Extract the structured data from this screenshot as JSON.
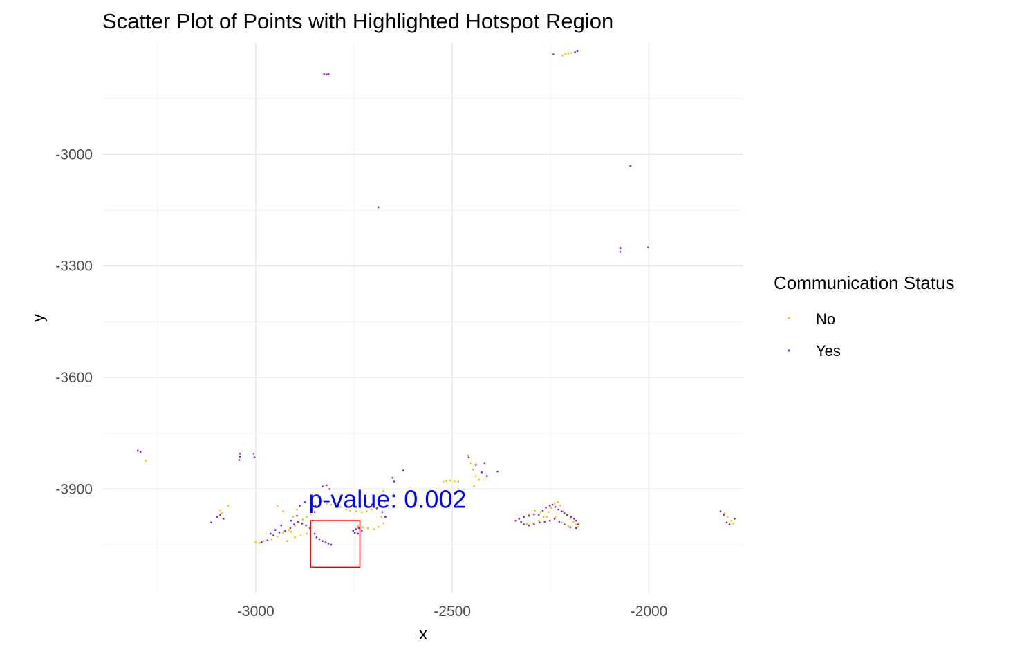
{
  "chart_data": {
    "type": "scatter",
    "title": "Scatter Plot of Points with Highlighted Hotspot Region",
    "xlabel": "x",
    "ylabel": "y",
    "xlim": [
      -3390,
      -1760
    ],
    "ylim": [
      -4180,
      -2700
    ],
    "x_ticks": [
      -3000,
      -2500,
      -2000
    ],
    "y_ticks": [
      -3000,
      -3300,
      -3600,
      -3900
    ],
    "grid": true,
    "legend": {
      "title": "Communication Status",
      "placement": "right",
      "entries": [
        {
          "label": "No",
          "color": "#FFC000"
        },
        {
          "label": "Yes",
          "color": "#8A2BE2"
        }
      ]
    },
    "annotation": {
      "text": "p-value: 0.002",
      "x": -2665,
      "y": -3928,
      "color": "#0000FF"
    },
    "hotspot_rect": {
      "x0": -2860,
      "x1": -2735,
      "y0": -4110,
      "y1": -3985,
      "color": "#FF0000"
    },
    "series": [
      {
        "name": "No",
        "color": "#FFC000",
        "points": [
          [
            -2220,
            -2734
          ],
          [
            -2212,
            -2730
          ],
          [
            -2205,
            -2728
          ],
          [
            -2197,
            -2727
          ],
          [
            -3280,
            -3824
          ],
          [
            -3090,
            -3957
          ],
          [
            -3070,
            -3945
          ],
          [
            -3085,
            -3965
          ],
          [
            -2990,
            -4045
          ],
          [
            -3000,
            -4043
          ],
          [
            -2980,
            -4040
          ],
          [
            -2960,
            -4035
          ],
          [
            -2945,
            -4028
          ],
          [
            -2930,
            -4018
          ],
          [
            -2915,
            -4010
          ],
          [
            -2900,
            -4000
          ],
          [
            -2890,
            -3990
          ],
          [
            -2880,
            -3982
          ],
          [
            -2870,
            -3975
          ],
          [
            -2860,
            -3968
          ],
          [
            -2900,
            -4030
          ],
          [
            -2885,
            -4025
          ],
          [
            -2870,
            -4020
          ],
          [
            -2945,
            -3945
          ],
          [
            -2930,
            -3960
          ],
          [
            -2905,
            -3975
          ],
          [
            -2895,
            -3955
          ],
          [
            -2920,
            -4040
          ],
          [
            -2910,
            -4015
          ],
          [
            -2840,
            -3920
          ],
          [
            -2830,
            -3932
          ],
          [
            -2820,
            -3940
          ],
          [
            -2808,
            -3942
          ],
          [
            -2795,
            -3938
          ],
          [
            -2785,
            -3948
          ],
          [
            -2770,
            -3955
          ],
          [
            -2760,
            -3958
          ],
          [
            -2745,
            -3960
          ],
          [
            -2730,
            -3962
          ],
          [
            -2718,
            -3960
          ],
          [
            -2705,
            -3955
          ],
          [
            -2690,
            -3950
          ],
          [
            -2680,
            -3945
          ],
          [
            -2672,
            -3935
          ],
          [
            -2668,
            -3920
          ],
          [
            -2675,
            -3905
          ],
          [
            -2740,
            -4000
          ],
          [
            -2728,
            -4003
          ],
          [
            -2715,
            -4005
          ],
          [
            -2700,
            -4008
          ],
          [
            -2688,
            -4002
          ],
          [
            -2675,
            -3992
          ],
          [
            -2680,
            -3975
          ],
          [
            -2523,
            -3880
          ],
          [
            -2515,
            -3878
          ],
          [
            -2505,
            -3877
          ],
          [
            -2495,
            -3879
          ],
          [
            -2485,
            -3880
          ],
          [
            -2460,
            -3810
          ],
          [
            -2453,
            -3830
          ],
          [
            -2447,
            -3848
          ],
          [
            -2440,
            -3865
          ],
          [
            -2432,
            -3875
          ],
          [
            -2445,
            -3892
          ],
          [
            -2340,
            -3985
          ],
          [
            -2325,
            -3990
          ],
          [
            -2310,
            -3994
          ],
          [
            -2295,
            -3992
          ],
          [
            -2280,
            -3985
          ],
          [
            -2268,
            -3975
          ],
          [
            -2255,
            -3962
          ],
          [
            -2248,
            -3950
          ],
          [
            -2240,
            -3938
          ],
          [
            -2232,
            -3935
          ],
          [
            -2225,
            -3945
          ],
          [
            -2218,
            -3960
          ],
          [
            -2210,
            -3972
          ],
          [
            -2200,
            -3980
          ],
          [
            -2192,
            -3988
          ],
          [
            -2185,
            -3995
          ],
          [
            -2180,
            -4002
          ],
          [
            -2205,
            -4000
          ],
          [
            -2222,
            -3990
          ],
          [
            -2238,
            -3975
          ],
          [
            -2260,
            -3975
          ],
          [
            -2275,
            -3962
          ],
          [
            -2290,
            -3958
          ],
          [
            -2305,
            -3968
          ],
          [
            -1808,
            -3965
          ],
          [
            -1800,
            -3975
          ],
          [
            -1790,
            -3985
          ],
          [
            -1785,
            -3993
          ]
        ]
      },
      {
        "name": "Yes",
        "color": "#8A2BE2",
        "points": [
          [
            -2243,
            -2731
          ],
          [
            -2188,
            -2725
          ],
          [
            -2182,
            -2722
          ],
          [
            -2826,
            -2784
          ],
          [
            -2820,
            -2785
          ],
          [
            -2815,
            -2784
          ],
          [
            -2688,
            -3142
          ],
          [
            -2047,
            -3031
          ],
          [
            -2073,
            -3252
          ],
          [
            -2073,
            -3262
          ],
          [
            -2002,
            -3250
          ],
          [
            -3300,
            -3797
          ],
          [
            -3293,
            -3800
          ],
          [
            -3040,
            -3805
          ],
          [
            -3040,
            -3813
          ],
          [
            -3042,
            -3822
          ],
          [
            -3005,
            -3805
          ],
          [
            -3003,
            -3815
          ],
          [
            -2625,
            -3850
          ],
          [
            -3113,
            -3990
          ],
          [
            -3098,
            -3975
          ],
          [
            -3090,
            -3970
          ],
          [
            -3082,
            -3980
          ],
          [
            -2985,
            -4043
          ],
          [
            -2970,
            -4038
          ],
          [
            -2955,
            -4025
          ],
          [
            -2940,
            -4017
          ],
          [
            -2925,
            -4013
          ],
          [
            -2912,
            -4005
          ],
          [
            -2902,
            -3995
          ],
          [
            -2893,
            -3988
          ],
          [
            -2882,
            -3993
          ],
          [
            -2872,
            -3998
          ],
          [
            -2862,
            -4005
          ],
          [
            -2855,
            -3985
          ],
          [
            -2850,
            -3962
          ],
          [
            -2848,
            -3945
          ],
          [
            -2875,
            -3935
          ],
          [
            -2888,
            -3945
          ],
          [
            -2895,
            -3972
          ],
          [
            -2910,
            -3985
          ],
          [
            -2935,
            -3998
          ],
          [
            -2950,
            -4010
          ],
          [
            -2962,
            -4020
          ],
          [
            -2830,
            -3893
          ],
          [
            -2820,
            -3890
          ],
          [
            -2812,
            -3900
          ],
          [
            -2850,
            -4020
          ],
          [
            -2845,
            -4030
          ],
          [
            -2838,
            -4035
          ],
          [
            -2830,
            -4040
          ],
          [
            -2822,
            -4043
          ],
          [
            -2815,
            -4047
          ],
          [
            -2808,
            -4050
          ],
          [
            -2752,
            -4012
          ],
          [
            -2745,
            -4008
          ],
          [
            -2738,
            -4005
          ],
          [
            -2730,
            -4012
          ],
          [
            -2740,
            -4020
          ],
          [
            -2748,
            -4018
          ],
          [
            -2722,
            -3935
          ],
          [
            -2705,
            -3942
          ],
          [
            -2692,
            -3952
          ],
          [
            -2678,
            -3962
          ],
          [
            -2670,
            -3975
          ],
          [
            -2652,
            -3870
          ],
          [
            -2648,
            -3880
          ],
          [
            -2458,
            -3815
          ],
          [
            -2440,
            -3835
          ],
          [
            -2425,
            -3855
          ],
          [
            -2412,
            -3865
          ],
          [
            -2385,
            -3853
          ],
          [
            -2418,
            -3830
          ],
          [
            -2338,
            -3985
          ],
          [
            -2330,
            -3980
          ],
          [
            -2318,
            -3975
          ],
          [
            -2305,
            -3972
          ],
          [
            -2292,
            -3968
          ],
          [
            -2280,
            -3970
          ],
          [
            -2270,
            -3958
          ],
          [
            -2262,
            -3950
          ],
          [
            -2252,
            -3945
          ],
          [
            -2245,
            -3942
          ],
          [
            -2238,
            -3948
          ],
          [
            -2230,
            -3955
          ],
          [
            -2222,
            -3960
          ],
          [
            -2215,
            -3965
          ],
          [
            -2208,
            -3970
          ],
          [
            -2198,
            -3975
          ],
          [
            -2190,
            -3980
          ],
          [
            -2185,
            -3985
          ],
          [
            -2180,
            -3995
          ],
          [
            -2185,
            -4005
          ],
          [
            -2200,
            -4003
          ],
          [
            -2215,
            -3995
          ],
          [
            -2228,
            -3988
          ],
          [
            -2240,
            -3980
          ],
          [
            -2252,
            -3985
          ],
          [
            -2265,
            -3988
          ],
          [
            -2278,
            -3990
          ],
          [
            -2292,
            -3995
          ],
          [
            -2305,
            -3998
          ],
          [
            -2318,
            -3995
          ],
          [
            -2325,
            -3988
          ],
          [
            -1818,
            -3960
          ],
          [
            -1810,
            -3970
          ],
          [
            -1802,
            -3990
          ],
          [
            -1795,
            -3995
          ],
          [
            -1782,
            -3980
          ]
        ]
      }
    ]
  }
}
